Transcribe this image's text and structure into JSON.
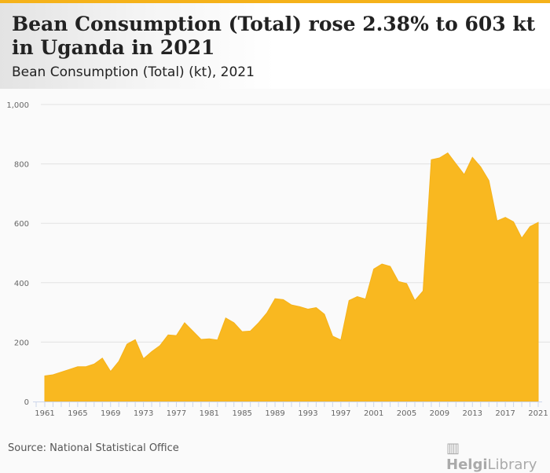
{
  "header": {
    "title": "Bean Consumption (Total) rose 2.38% to 603 kt in Uganda in 2021",
    "subtitle": "Bean Consumption (Total) (kt), 2021"
  },
  "footer": {
    "source": "Source: National Statistical Office",
    "logo": "HelgiLibrary"
  },
  "colors": {
    "fill": "#f9b820",
    "accent": "#f5b21a"
  },
  "chart_data": {
    "type": "area",
    "title": "Bean Consumption (Total) (kt), 2021",
    "xlabel": "",
    "ylabel": "",
    "ylim": [
      0,
      1000
    ],
    "yticks": [
      "0",
      "200",
      "400",
      "600",
      "800",
      "1,000"
    ],
    "ytick_values": [
      0,
      200,
      400,
      600,
      800,
      1000
    ],
    "xticks": [
      "1961",
      "1965",
      "1969",
      "1973",
      "1977",
      "1981",
      "1985",
      "1989",
      "1993",
      "1997",
      "2001",
      "2005",
      "2009",
      "2013",
      "2017",
      "2021"
    ],
    "x": [
      1961,
      1962,
      1963,
      1964,
      1965,
      1966,
      1967,
      1968,
      1969,
      1970,
      1971,
      1972,
      1973,
      1974,
      1975,
      1976,
      1977,
      1978,
      1979,
      1980,
      1981,
      1982,
      1983,
      1984,
      1985,
      1986,
      1987,
      1988,
      1989,
      1990,
      1991,
      1992,
      1993,
      1994,
      1995,
      1996,
      1997,
      1998,
      1999,
      2000,
      2001,
      2002,
      2003,
      2004,
      2005,
      2006,
      2007,
      2008,
      2009,
      2010,
      2011,
      2012,
      2013,
      2014,
      2015,
      2016,
      2017,
      2018,
      2019,
      2020,
      2021
    ],
    "values": [
      86,
      90,
      99,
      108,
      117,
      117,
      126,
      146,
      101,
      135,
      193,
      208,
      144,
      168,
      188,
      224,
      222,
      265,
      237,
      209,
      211,
      207,
      281,
      265,
      235,
      237,
      265,
      298,
      346,
      343,
      325,
      319,
      311,
      316,
      294,
      220,
      207,
      340,
      353,
      345,
      446,
      463,
      455,
      404,
      397,
      340,
      372,
      814,
      820,
      837,
      800,
      764,
      822,
      790,
      744,
      608,
      620,
      605,
      550,
      589,
      603
    ]
  }
}
